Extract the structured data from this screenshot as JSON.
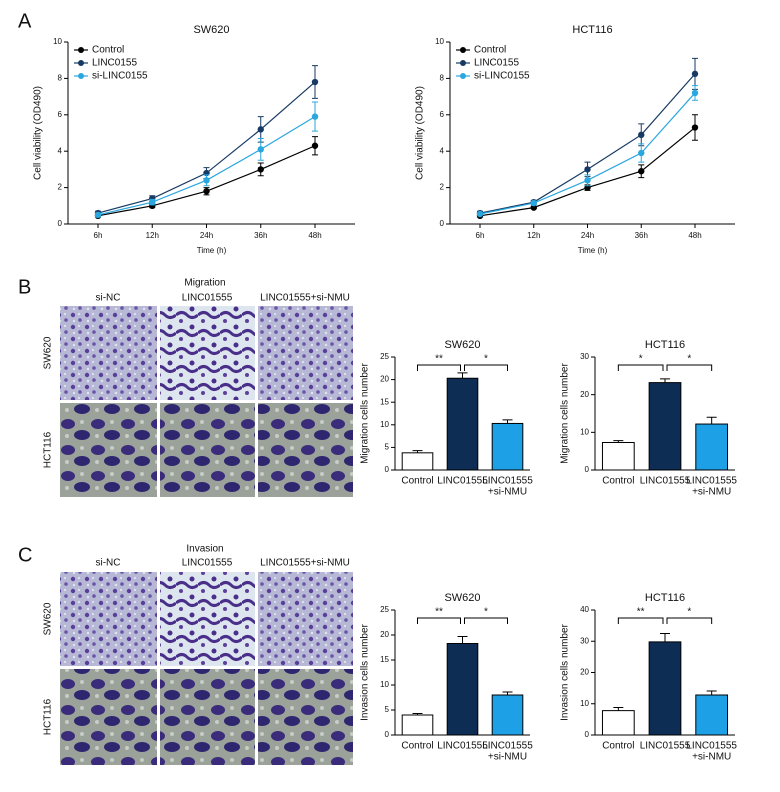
{
  "panels": [
    {
      "label": "A"
    },
    {
      "label": "B",
      "title": "Migration",
      "columns": [
        "si-NC",
        "LINC01555",
        "LINC01555+si-NMU"
      ],
      "rows": [
        "SW620",
        "HCT116"
      ]
    },
    {
      "label": "C",
      "title": "Invasion",
      "columns": [
        "si-NC",
        "LINC01555",
        "LINC01555+si-NMU"
      ],
      "rows": [
        "SW620",
        "HCT116"
      ]
    }
  ],
  "chart_data": [
    {
      "type": "line",
      "title": "SW620",
      "x_label": "Time (h)",
      "y_label": "Cell viability (OD490)",
      "categories": [
        "6h",
        "12h",
        "24h",
        "36h",
        "48h"
      ],
      "ylim": [
        0,
        10
      ],
      "yticks": [
        0,
        2,
        4,
        6,
        8,
        10
      ],
      "legend": "upper left",
      "series": [
        {
          "name": "Control",
          "color": "#000000",
          "values": [
            0.45,
            1.0,
            1.8,
            3.0,
            4.3
          ],
          "errors": [
            0.05,
            0.1,
            0.2,
            0.35,
            0.5
          ]
        },
        {
          "name": "LINC0155",
          "color": "#163a63",
          "values": [
            0.6,
            1.4,
            2.8,
            5.2,
            7.8
          ],
          "errors": [
            0.1,
            0.15,
            0.3,
            0.7,
            0.9
          ]
        },
        {
          "name": "si-LINC0155",
          "color": "#2aa7df",
          "values": [
            0.5,
            1.2,
            2.4,
            4.1,
            5.9
          ],
          "errors": [
            0.1,
            0.15,
            0.3,
            0.6,
            0.8
          ]
        }
      ]
    },
    {
      "type": "line",
      "title": "HCT116",
      "x_label": "Time (h)",
      "y_label": "Cell viability (OD490)",
      "categories": [
        "6h",
        "12h",
        "24h",
        "36h",
        "48h"
      ],
      "ylim": [
        0,
        10
      ],
      "yticks": [
        0,
        2,
        4,
        6,
        8,
        10
      ],
      "legend": "upper left",
      "series": [
        {
          "name": "Control",
          "color": "#000000",
          "values": [
            0.45,
            0.9,
            2.0,
            2.9,
            5.3
          ],
          "errors": [
            0.05,
            0.05,
            0.15,
            0.35,
            0.7
          ]
        },
        {
          "name": "LINC0155",
          "color": "#163a63",
          "values": [
            0.6,
            1.2,
            3.0,
            4.9,
            8.25
          ],
          "errors": [
            0.1,
            0.1,
            0.4,
            0.6,
            0.85
          ]
        },
        {
          "name": "si-LINC0155",
          "color": "#2aa7df",
          "values": [
            0.55,
            1.15,
            2.4,
            3.9,
            7.2
          ],
          "errors": [
            0.05,
            0.1,
            0.3,
            0.5,
            0.4
          ]
        }
      ]
    },
    {
      "type": "bar",
      "title": "SW620",
      "y_label": "Migration cells number",
      "categories": [
        "Control",
        "LINC01555",
        [
          "LINC01555",
          "+si-NMU"
        ]
      ],
      "colors": [
        "#ffffff",
        "#0d2d55",
        "#1ea0e6"
      ],
      "values": [
        3.8,
        20.3,
        10.3
      ],
      "errors": [
        0.5,
        1.2,
        0.8
      ],
      "ylim": [
        0,
        25
      ],
      "yticks": [
        0,
        5,
        10,
        15,
        20,
        25
      ],
      "annotations": [
        {
          "label": "**",
          "between": [
            "Control",
            "LINC01555"
          ]
        },
        {
          "label": "*",
          "between": [
            "LINC01555",
            "LINC01555+si-NMU"
          ]
        }
      ]
    },
    {
      "type": "bar",
      "title": "HCT116",
      "y_label": "Migration cells number",
      "categories": [
        "Control",
        "LINC01555",
        [
          "LINC01555",
          "+si-NMU"
        ]
      ],
      "colors": [
        "#ffffff",
        "#0d2d55",
        "#1ea0e6"
      ],
      "values": [
        7.3,
        23.2,
        12.2
      ],
      "errors": [
        0.5,
        1.0,
        1.8
      ],
      "ylim": [
        0,
        30
      ],
      "yticks": [
        0,
        10,
        20,
        30
      ],
      "annotations": [
        {
          "label": "*",
          "between": [
            "Control",
            "LINC01555"
          ]
        },
        {
          "label": "*",
          "between": [
            "LINC01555",
            "LINC01555+si-NMU"
          ]
        }
      ]
    },
    {
      "type": "bar",
      "title": "SW620",
      "y_label": "Invasion cells number",
      "categories": [
        "Control",
        "LINC01555",
        [
          "LINC01555",
          "+si-NMU"
        ]
      ],
      "colors": [
        "#ffffff",
        "#0d2d55",
        "#1ea0e6"
      ],
      "values": [
        4.0,
        18.3,
        8.0
      ],
      "errors": [
        0.3,
        1.4,
        0.6
      ],
      "ylim": [
        0,
        25
      ],
      "yticks": [
        0,
        5,
        10,
        15,
        20,
        25
      ],
      "annotations": [
        {
          "label": "**",
          "between": [
            "Control",
            "LINC01555"
          ]
        },
        {
          "label": "*",
          "between": [
            "LINC01555",
            "LINC01555+si-NMU"
          ]
        }
      ]
    },
    {
      "type": "bar",
      "title": "HCT116",
      "y_label": "Invasion cells number",
      "categories": [
        "Control",
        "LINC01555",
        [
          "LINC01555",
          "+si-NMU"
        ]
      ],
      "colors": [
        "#ffffff",
        "#0d2d55",
        "#1ea0e6"
      ],
      "values": [
        7.8,
        29.8,
        12.8
      ],
      "errors": [
        1.0,
        2.7,
        1.3
      ],
      "ylim": [
        0,
        40
      ],
      "yticks": [
        0,
        10,
        20,
        30,
        40
      ],
      "annotations": [
        {
          "label": "**",
          "between": [
            "Control",
            "LINC01555"
          ]
        },
        {
          "label": "*",
          "between": [
            "LINC01555",
            "LINC01555+si-NMU"
          ]
        }
      ]
    }
  ]
}
